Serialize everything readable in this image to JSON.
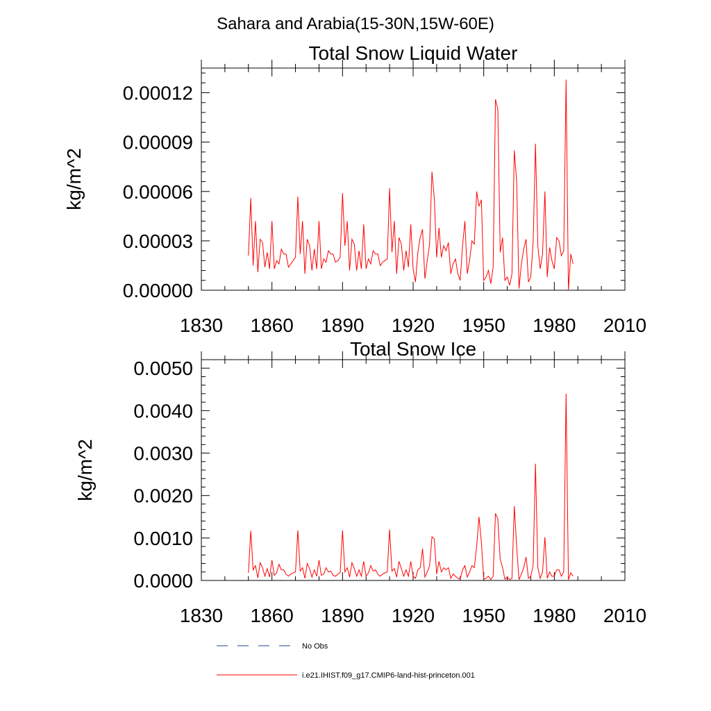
{
  "page_title": "Sahara and Arabia(15-30N,15W-60E)",
  "legend": {
    "entries": [
      {
        "label": "No Obs",
        "style": "dashed",
        "color": "#1f3c88"
      },
      {
        "label": "i.e21.IHIST.f09_g17.CMIP6-land-hist-princeton.001",
        "style": "solid",
        "color": "#ff0000"
      }
    ]
  },
  "chart_data": [
    {
      "type": "line",
      "title": "Total Snow Liquid Water",
      "xlabel": "",
      "ylabel": "kg/m^2",
      "xlim": [
        1830,
        2010
      ],
      "ylim": [
        0,
        0.000135
      ],
      "xticks": [
        1830,
        1860,
        1890,
        1920,
        1950,
        1980,
        2010
      ],
      "xtick_labels": [
        "1830",
        "1860",
        "1890",
        "1920",
        "1950",
        "1980",
        "2010"
      ],
      "yticks": [
        0,
        3e-05,
        6e-05,
        9e-05,
        0.00012
      ],
      "ytick_labels": [
        "0.00000",
        "0.00003",
        "0.00006",
        "0.00009",
        "0.00012"
      ],
      "grid": false,
      "x_start": 1850,
      "series": [
        {
          "name": "i.e21.IHIST.f09_g17.CMIP6-land-hist-princeton.001",
          "color": "#ff0000",
          "values": [
            2.1e-05,
            5.6e-05,
            1.5e-05,
            4.2e-05,
            1.1e-05,
            3.1e-05,
            2.9e-05,
            1.4e-05,
            2.3e-05,
            1.3e-05,
            4.2e-05,
            1.3e-05,
            1.8e-05,
            1.6e-05,
            2.5e-05,
            2.2e-05,
            2.2e-05,
            1.4e-05,
            1.6e-05,
            1.8e-05,
            2e-05,
            5.7e-05,
            2.2e-05,
            4.2e-05,
            1e-05,
            3.1e-05,
            2.7e-05,
            1.2e-05,
            2.5e-05,
            1.3e-05,
            4.2e-05,
            1.3e-05,
            1.9e-05,
            1.7e-05,
            2.4e-05,
            2.2e-05,
            2.2e-05,
            1.7e-05,
            1.8e-05,
            2e-05,
            5.9e-05,
            2.7e-05,
            4.2e-05,
            1.2e-05,
            3.1e-05,
            2.8e-05,
            1.2e-05,
            2.4e-05,
            1.3e-05,
            4e-05,
            1.3e-05,
            1.9e-05,
            1.6e-05,
            2.4e-05,
            2.2e-05,
            2.2e-05,
            1.5e-05,
            1.7e-05,
            1.8e-05,
            1.9e-05,
            6.2e-05,
            2.3e-05,
            4.2e-05,
            1e-05,
            3.2e-05,
            2.8e-05,
            1.2e-05,
            2.4e-05,
            1.4e-05,
            4e-05,
            1.3e-05,
            5e-06,
            2.3e-05,
            3.2e-05,
            3.7e-05,
            7e-06,
            1.8e-05,
            2.8e-05,
            7.2e-05,
            5.6e-05,
            2e-05,
            3.8e-05,
            2e-05,
            2.7e-05,
            2.4e-05,
            2.9e-05,
            1e-05,
            1.6e-05,
            1.9e-05,
            1e-05,
            6e-06,
            2.7e-05,
            4.2e-05,
            1e-05,
            1.8e-05,
            3e-05,
            2.8e-05,
            6e-05,
            5.1e-05,
            5.5e-05,
            6e-06,
            8e-06,
            1.2e-05,
            4e-06,
            1.4e-05,
            0.000116,
            0.00011,
            2.3e-05,
            3.2e-05,
            6e-06,
            8e-06,
            3e-06,
            1e-05,
            8.5e-05,
            6.6e-05,
            1e-06,
            1.6e-05,
            2.5e-05,
            3.1e-05,
            5e-06,
            8e-06,
            2.9e-05,
            8.9e-05,
            2.7e-05,
            1.3e-05,
            2.2e-05,
            6e-05,
            8e-06,
            2.6e-05,
            1.8e-05,
            1.3e-05,
            3.2e-05,
            3e-05,
            2.1e-05,
            2.4e-05,
            0.000128,
            0.0,
            2.2e-05,
            1.6e-05
          ]
        }
      ]
    },
    {
      "type": "line",
      "title": "Total Snow Ice",
      "xlabel": "",
      "ylabel": "kg/m^2",
      "xlim": [
        1830,
        2010
      ],
      "ylim": [
        0,
        0.0052
      ],
      "xticks": [
        1830,
        1860,
        1890,
        1920,
        1950,
        1980,
        2010
      ],
      "xtick_labels": [
        "1830",
        "1860",
        "1890",
        "1920",
        "1950",
        "1980",
        "2010"
      ],
      "yticks": [
        0,
        0.001,
        0.002,
        0.003,
        0.004,
        0.005
      ],
      "ytick_labels": [
        "0.0000",
        "0.0010",
        "0.0020",
        "0.0030",
        "0.0040",
        "0.0050"
      ],
      "grid": false,
      "x_start": 1850,
      "series": [
        {
          "name": "i.e21.IHIST.f09_g17.CMIP6-land-hist-princeton.001",
          "color": "#ff0000",
          "values": [
            0.00018,
            0.00117,
            0.00025,
            0.00035,
            6e-05,
            0.00042,
            0.0003,
            0.0001,
            0.00028,
            8e-05,
            0.00048,
            0.00012,
            0.00018,
            0.00038,
            0.00025,
            0.00025,
            0.00015,
            0.0001,
            0.00015,
            0.00018,
            0.0002,
            0.00118,
            0.00022,
            0.0003,
            5e-05,
            0.0004,
            0.00028,
            8e-05,
            0.00025,
            0.0001,
            0.00048,
            0.00012,
            0.00015,
            0.0003,
            0.0002,
            0.00022,
            0.00012,
            0.0001,
            0.00015,
            0.00018,
            0.00118,
            0.0002,
            0.0003,
            8e-05,
            0.00042,
            0.00028,
            0.0001,
            0.00025,
            0.0001,
            0.00045,
            0.0001,
            0.00018,
            0.00035,
            0.00022,
            0.00025,
            0.00015,
            0.0001,
            0.00015,
            0.00018,
            0.0002,
            0.0012,
            0.00022,
            0.00028,
            8e-05,
            0.00045,
            0.00028,
            0.0001,
            0.00025,
            0.0001,
            0.00045,
            0.0001,
            5e-05,
            0.00025,
            0.0003,
            0.00075,
            8e-05,
            0.0002,
            0.00035,
            0.00103,
            0.00098,
            0.00015,
            0.00045,
            0.0002,
            0.0003,
            0.00025,
            0.0003,
            5e-05,
            0.00015,
            0.0001,
            5e-05,
            3e-05,
            0.00025,
            0.00035,
            8e-05,
            0.0002,
            0.00035,
            0.0003,
            0.0008,
            0.0015,
            0.0009,
            3e-05,
            5e-05,
            0.0001,
            2e-05,
            0.0001,
            0.00158,
            0.00145,
            0.0005,
            0.0003,
            3e-05,
            8e-05,
            2e-05,
            5e-05,
            0.00175,
            0.0008,
            2e-05,
            0.00015,
            0.0003,
            0.00055,
            5e-05,
            0.0001,
            0.00035,
            0.00275,
            0.0003,
            5e-05,
            0.0002,
            0.00102,
            5e-05,
            0.0002,
            0.0001,
            0.0001,
            0.00025,
            0.00025,
            0.0001,
            0.0002,
            0.0044,
            2e-05,
            0.00018,
            0.0001
          ]
        }
      ]
    }
  ]
}
